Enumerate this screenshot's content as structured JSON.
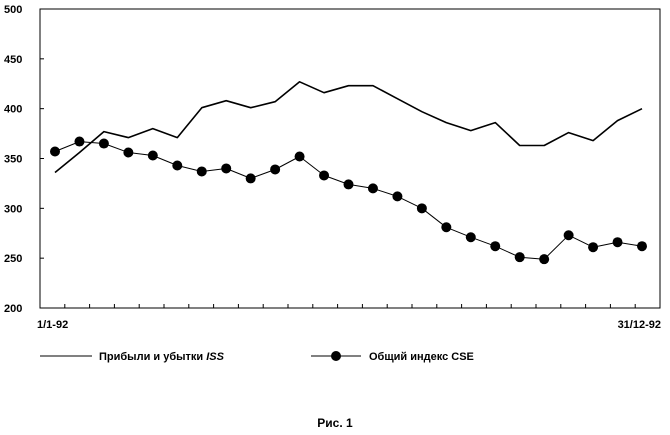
{
  "chart_data": {
    "type": "line",
    "ylim": [
      200,
      500
    ],
    "y_ticks": [
      "200",
      "250",
      "300",
      "350",
      "400",
      "450",
      "500"
    ],
    "x_tick_labels": {
      "start": "1/1-92",
      "end": "31/12-92"
    },
    "grid": false,
    "series": [
      {
        "name": "Прибыли и убытки ",
        "name_italic": "ISS",
        "marker": "none",
        "values": [
          336,
          356,
          377,
          371,
          380,
          371,
          401,
          408,
          401,
          407,
          427,
          416,
          423,
          423,
          410,
          397,
          386,
          378,
          386,
          363,
          363,
          376,
          368,
          388,
          400
        ]
      },
      {
        "name": "Общий индекс CSE",
        "marker": "circle",
        "values": [
          357,
          367,
          365,
          356,
          353,
          343,
          337,
          340,
          330,
          339,
          352,
          333,
          324,
          320,
          312,
          300,
          281,
          271,
          262,
          251,
          249,
          273,
          261,
          266,
          262
        ]
      }
    ]
  },
  "caption": "Рис. 1"
}
